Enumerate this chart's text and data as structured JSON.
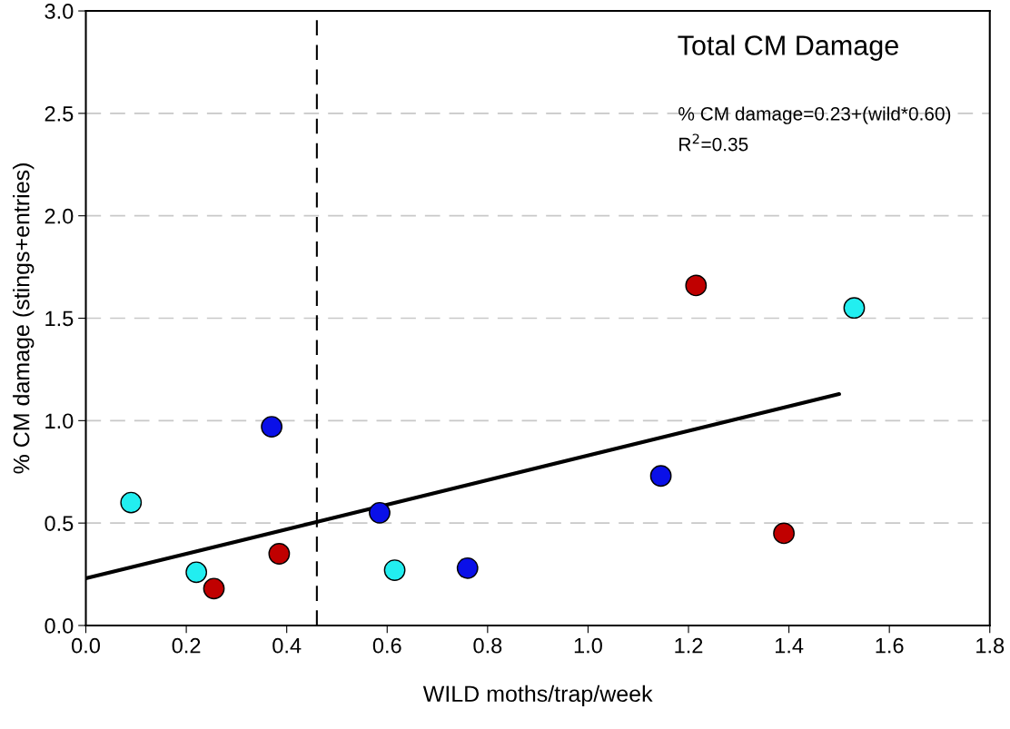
{
  "chart_data": {
    "type": "scatter",
    "title": "Total CM Damage",
    "xlabel": "WILD moths/trap/week",
    "ylabel": "% CM damage (stings+entries)",
    "annotations": [
      "% CM damage=0.23+(wild*0.60)",
      "R$^{2}$=0.35"
    ],
    "series": [
      {
        "color": "#22eef0",
        "x": [
          0.09,
          0.22,
          0.615,
          1.53
        ],
        "values": [
          0.6,
          0.26,
          0.27,
          1.55
        ]
      },
      {
        "color": "#0a10e8",
        "x": [
          0.37,
          0.585,
          0.76,
          1.145
        ],
        "values": [
          0.97,
          0.55,
          0.28,
          0.73
        ]
      },
      {
        "color": "#c00000",
        "x": [
          0.255,
          0.385,
          1.215,
          1.39
        ],
        "values": [
          0.18,
          0.35,
          1.66,
          0.45
        ]
      },
      {
        "type": "line",
        "marker": "none",
        "color": "#000000",
        "x": [
          0.0,
          1.5
        ],
        "values": [
          0.23,
          1.13
        ]
      }
    ],
    "ref_lines": [
      {
        "axis": "x",
        "value": 0.46,
        "color": "#000000",
        "line_style": "dashed"
      }
    ],
    "xlim": [
      0.0,
      1.8
    ],
    "xticks": [
      {
        "value": 0.0,
        "label": "0.0"
      },
      0.2,
      0.4,
      0.6,
      0.8,
      {
        "value": 1.0,
        "label": "1.0"
      },
      1.2,
      1.4,
      1.6,
      1.8
    ],
    "ylim": [
      0.0,
      3.0
    ],
    "yticks": [
      {
        "value": 0.0,
        "label": "0.0"
      },
      0.5,
      {
        "value": 1.0,
        "label": "1.0"
      },
      1.5,
      {
        "value": 2.0,
        "label": "2.0"
      },
      2.5,
      {
        "value": 3.0,
        "label": "3.0"
      }
    ],
    "grid": "y",
    "marker": "circle",
    "legend": false
  }
}
